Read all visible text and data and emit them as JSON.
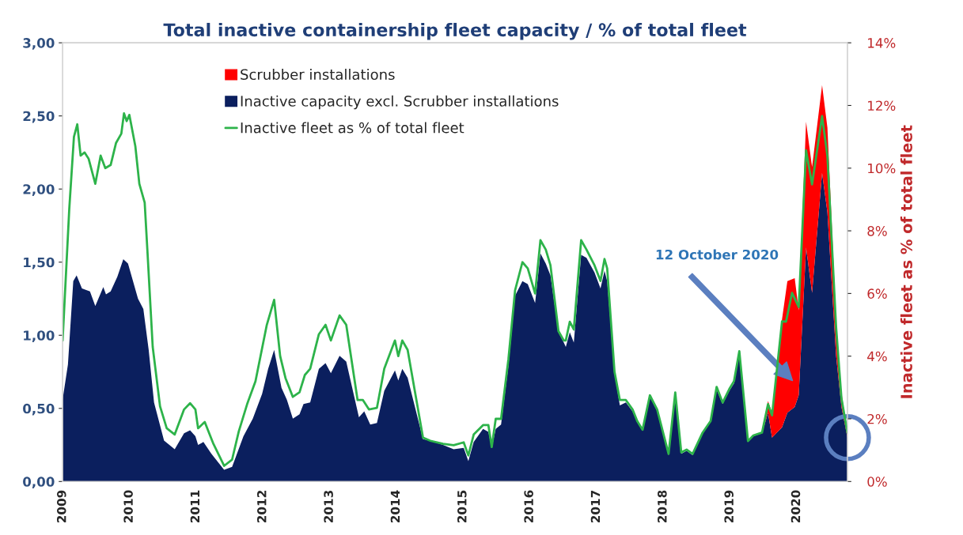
{
  "chart_data": {
    "type": "area",
    "title": "Total inactive containership fleet capacity / % of total fleet",
    "y2label": "Inactive fleet as % of total fleet",
    "stacked": true,
    "legend": "top",
    "grid": false,
    "xlim": [
      2009,
      2020.76
    ],
    "xticks": [
      2009,
      2010,
      2011,
      2012,
      2013,
      2014,
      2015,
      2016,
      2017,
      2018,
      2019,
      2020
    ],
    "ylim": [
      0,
      3
    ],
    "yticks": [
      {
        "value": 0,
        "label": "0,00"
      },
      {
        "value": 0.5,
        "label": "0,50"
      },
      {
        "value": 1,
        "label": "1,00"
      },
      {
        "value": 1.5,
        "label": "1,50"
      },
      {
        "value": 2,
        "label": "2,00"
      },
      {
        "value": 2.5,
        "label": "2,50"
      },
      {
        "value": 3,
        "label": "3,00"
      }
    ],
    "y2lim": [
      0,
      14
    ],
    "y2ticks": [
      {
        "value": 0,
        "label": "0%"
      },
      {
        "value": 2,
        "label": "2%"
      },
      {
        "value": 4,
        "label": "4%"
      },
      {
        "value": 6,
        "label": "6%"
      },
      {
        "value": 8,
        "label": "8%"
      },
      {
        "value": 10,
        "label": "10%"
      },
      {
        "value": 12,
        "label": "12%"
      },
      {
        "value": 14,
        "label": "14%"
      }
    ],
    "annotations": [
      "12 October 2020"
    ],
    "series": [
      {
        "name": "Inactive capacity excl. Scrubber installations",
        "type": "area",
        "color": "#0b1f5e",
        "x": [
          2009.0,
          2009.08,
          2009.16,
          2009.21,
          2009.29,
          2009.41,
          2009.49,
          2009.61,
          2009.65,
          2009.72,
          2009.82,
          2009.91,
          2009.98,
          2010.13,
          2010.21,
          2010.29,
          2010.37,
          2010.52,
          2010.68,
          2010.82,
          2010.91,
          2010.99,
          2011.03,
          2011.11,
          2011.23,
          2011.42,
          2011.54,
          2011.71,
          2011.85,
          2011.99,
          2012.08,
          2012.17,
          2012.28,
          2012.36,
          2012.45,
          2012.55,
          2012.61,
          2012.71,
          2012.84,
          2012.94,
          2013.02,
          2013.15,
          2013.25,
          2013.44,
          2013.52,
          2013.61,
          2013.71,
          2013.82,
          2013.98,
          2014.03,
          2014.09,
          2014.17,
          2014.4,
          2014.51,
          2014.7,
          2014.86,
          2015.01,
          2015.08,
          2015.16,
          2015.3,
          2015.38,
          2015.43,
          2015.49,
          2015.57,
          2015.68,
          2015.78,
          2015.89,
          2015.97,
          2016.08,
          2016.16,
          2016.24,
          2016.31,
          2016.43,
          2016.51,
          2016.54,
          2016.6,
          2016.66,
          2016.77,
          2016.85,
          2016.97,
          2017.06,
          2017.12,
          2017.16,
          2017.27,
          2017.35,
          2017.44,
          2017.54,
          2017.61,
          2017.69,
          2017.8,
          2017.91,
          2018.08,
          2018.18,
          2018.27,
          2018.35,
          2018.44,
          2018.59,
          2018.71,
          2018.8,
          2018.89,
          2018.99,
          2019.06,
          2019.14,
          2019.27,
          2019.35,
          2019.48,
          2019.57,
          2019.63,
          2019.78,
          2019.86,
          2019.97,
          2020.03,
          2020.14,
          2020.23,
          2020.38,
          2020.46,
          2020.59,
          2020.67,
          2020.76
        ],
        "values": [
          0.56,
          0.8,
          1.37,
          1.41,
          1.32,
          1.3,
          1.2,
          1.33,
          1.28,
          1.3,
          1.4,
          1.52,
          1.49,
          1.25,
          1.18,
          0.9,
          0.54,
          0.28,
          0.22,
          0.33,
          0.35,
          0.31,
          0.25,
          0.27,
          0.19,
          0.08,
          0.1,
          0.31,
          0.43,
          0.6,
          0.77,
          0.9,
          0.64,
          0.56,
          0.43,
          0.46,
          0.53,
          0.54,
          0.77,
          0.81,
          0.74,
          0.86,
          0.82,
          0.44,
          0.48,
          0.39,
          0.4,
          0.62,
          0.76,
          0.69,
          0.77,
          0.71,
          0.29,
          0.28,
          0.25,
          0.22,
          0.23,
          0.14,
          0.27,
          0.36,
          0.34,
          0.23,
          0.36,
          0.39,
          0.79,
          1.27,
          1.37,
          1.35,
          1.22,
          1.56,
          1.49,
          1.41,
          1.02,
          0.95,
          0.92,
          1.02,
          0.95,
          1.55,
          1.53,
          1.43,
          1.32,
          1.44,
          1.37,
          0.74,
          0.52,
          0.54,
          0.48,
          0.41,
          0.35,
          0.58,
          0.48,
          0.18,
          0.6,
          0.19,
          0.21,
          0.18,
          0.33,
          0.41,
          0.63,
          0.53,
          0.62,
          0.67,
          0.87,
          0.27,
          0.31,
          0.33,
          0.47,
          0.3,
          0.37,
          0.47,
          0.51,
          0.59,
          1.6,
          1.29,
          2.11,
          1.84,
          0.86,
          0.51,
          0.3
        ]
      },
      {
        "name": "Scrubber installations",
        "type": "area",
        "color": "#ff0000",
        "x": [
          2009.0,
          2009.08,
          2009.16,
          2009.21,
          2009.29,
          2009.41,
          2009.49,
          2009.61,
          2009.65,
          2009.72,
          2009.82,
          2009.91,
          2009.98,
          2010.13,
          2010.21,
          2010.29,
          2010.37,
          2010.52,
          2010.68,
          2010.82,
          2010.91,
          2010.99,
          2011.03,
          2011.11,
          2011.23,
          2011.42,
          2011.54,
          2011.71,
          2011.85,
          2011.99,
          2012.08,
          2012.17,
          2012.28,
          2012.36,
          2012.45,
          2012.55,
          2012.61,
          2012.71,
          2012.84,
          2012.94,
          2013.02,
          2013.15,
          2013.25,
          2013.44,
          2013.52,
          2013.61,
          2013.71,
          2013.82,
          2013.98,
          2014.03,
          2014.09,
          2014.17,
          2014.4,
          2014.51,
          2014.7,
          2014.86,
          2015.01,
          2015.08,
          2015.16,
          2015.3,
          2015.38,
          2015.43,
          2015.49,
          2015.57,
          2015.68,
          2015.78,
          2015.89,
          2015.97,
          2016.08,
          2016.16,
          2016.24,
          2016.31,
          2016.43,
          2016.51,
          2016.54,
          2016.6,
          2016.66,
          2016.77,
          2016.85,
          2016.97,
          2017.06,
          2017.12,
          2017.16,
          2017.27,
          2017.35,
          2017.44,
          2017.54,
          2017.61,
          2017.69,
          2017.8,
          2017.91,
          2018.08,
          2018.18,
          2018.27,
          2018.35,
          2018.44,
          2018.59,
          2018.71,
          2018.8,
          2018.89,
          2018.99,
          2019.06,
          2019.14,
          2019.27,
          2019.35,
          2019.48,
          2019.57,
          2019.63,
          2019.78,
          2019.86,
          2019.97,
          2020.03,
          2020.14,
          2020.23,
          2020.38,
          2020.46,
          2020.59,
          2020.67,
          2020.76
        ],
        "values": [
          0,
          0,
          0,
          0,
          0,
          0,
          0,
          0,
          0,
          0,
          0,
          0,
          0,
          0,
          0,
          0,
          0,
          0,
          0,
          0,
          0,
          0,
          0,
          0,
          0,
          0,
          0,
          0,
          0,
          0,
          0,
          0,
          0,
          0,
          0,
          0,
          0,
          0,
          0,
          0,
          0,
          0,
          0,
          0,
          0,
          0,
          0,
          0,
          0,
          0,
          0,
          0,
          0,
          0,
          0,
          0,
          0,
          0,
          0,
          0,
          0,
          0,
          0,
          0,
          0,
          0,
          0,
          0,
          0,
          0,
          0,
          0,
          0,
          0,
          0,
          0,
          0,
          0,
          0,
          0,
          0,
          0,
          0,
          0,
          0,
          0,
          0,
          0,
          0,
          0,
          0,
          0,
          0,
          0,
          0,
          0,
          0,
          0,
          0,
          0,
          0,
          0,
          0,
          0,
          0,
          0,
          0.08,
          0.17,
          0.74,
          0.9,
          0.88,
          0.58,
          0.86,
          0.86,
          0.6,
          0.58,
          0.24,
          0.1,
          0.03
        ]
      },
      {
        "name": "Inactive fleet as % of total fleet",
        "type": "line",
        "axis": "y2",
        "color": "#2db34a",
        "x": [
          2009.0,
          2009.1,
          2009.17,
          2009.22,
          2009.27,
          2009.33,
          2009.39,
          2009.49,
          2009.57,
          2009.64,
          2009.72,
          2009.8,
          2009.88,
          2009.92,
          2009.96,
          2010.0,
          2010.09,
          2010.15,
          2010.23,
          2010.27,
          2010.35,
          2010.46,
          2010.56,
          2010.68,
          2010.82,
          2010.91,
          2010.99,
          2011.03,
          2011.13,
          2011.26,
          2011.42,
          2011.54,
          2011.64,
          2011.77,
          2011.89,
          2012.06,
          2012.17,
          2012.26,
          2012.34,
          2012.45,
          2012.55,
          2012.63,
          2012.71,
          2012.84,
          2012.94,
          2013.02,
          2013.15,
          2013.25,
          2013.42,
          2013.5,
          2013.59,
          2013.71,
          2013.82,
          2013.98,
          2014.03,
          2014.09,
          2014.17,
          2014.4,
          2014.51,
          2014.7,
          2014.86,
          2015.01,
          2015.08,
          2015.16,
          2015.3,
          2015.38,
          2015.43,
          2015.49,
          2015.57,
          2015.68,
          2015.78,
          2015.89,
          2015.97,
          2016.08,
          2016.16,
          2016.24,
          2016.31,
          2016.43,
          2016.51,
          2016.54,
          2016.6,
          2016.66,
          2016.77,
          2016.85,
          2016.97,
          2017.06,
          2017.12,
          2017.16,
          2017.27,
          2017.35,
          2017.44,
          2017.54,
          2017.61,
          2017.69,
          2017.8,
          2017.91,
          2018.08,
          2018.18,
          2018.27,
          2018.35,
          2018.44,
          2018.59,
          2018.71,
          2018.8,
          2018.89,
          2018.99,
          2019.06,
          2019.14,
          2019.27,
          2019.35,
          2019.48,
          2019.57,
          2019.63,
          2019.78,
          2019.84,
          2019.93,
          2020.03,
          2020.14,
          2020.23,
          2020.38,
          2020.46,
          2020.59,
          2020.67,
          2020.76
        ],
        "values": [
          4.5,
          8.7,
          11.0,
          11.4,
          10.4,
          10.5,
          10.3,
          9.5,
          10.4,
          10.0,
          10.1,
          10.8,
          11.1,
          11.75,
          11.5,
          11.7,
          10.7,
          9.5,
          8.9,
          7.4,
          4.3,
          2.4,
          1.7,
          1.5,
          2.3,
          2.5,
          2.3,
          1.7,
          1.9,
          1.2,
          0.5,
          0.7,
          1.6,
          2.5,
          3.2,
          5.0,
          5.8,
          4.0,
          3.3,
          2.7,
          2.85,
          3.4,
          3.6,
          4.7,
          5.0,
          4.5,
          5.3,
          5.0,
          2.6,
          2.6,
          2.3,
          2.35,
          3.6,
          4.5,
          4.0,
          4.5,
          4.2,
          1.4,
          1.3,
          1.2,
          1.16,
          1.25,
          0.83,
          1.5,
          1.8,
          1.8,
          1.1,
          2.0,
          2.0,
          3.9,
          6.1,
          7.0,
          6.8,
          6.0,
          7.7,
          7.4,
          6.9,
          4.8,
          4.5,
          4.5,
          5.1,
          4.85,
          7.7,
          7.4,
          6.9,
          6.4,
          7.1,
          6.8,
          3.5,
          2.6,
          2.6,
          2.3,
          1.93,
          1.65,
          2.75,
          2.29,
          0.88,
          2.84,
          0.93,
          1.02,
          0.88,
          1.56,
          1.93,
          3.02,
          2.52,
          2.95,
          3.2,
          4.16,
          1.29,
          1.47,
          1.56,
          2.47,
          2.11,
          5.11,
          5.1,
          6.02,
          5.57,
          10.57,
          9.48,
          11.66,
          10.39,
          4.93,
          2.66,
          1.56
        ]
      }
    ]
  }
}
